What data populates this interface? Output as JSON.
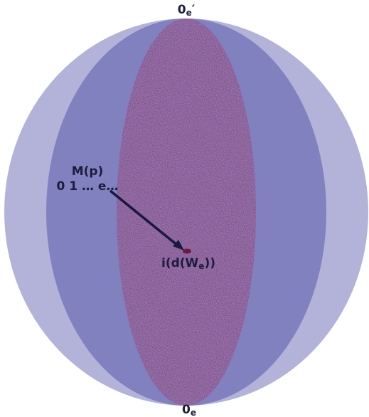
{
  "labels": {
    "top": {
      "main": "0",
      "sub": "e",
      "mark": "′"
    },
    "map": {
      "line1": "M(p)",
      "line2": "0 1 … e…"
    },
    "point": {
      "pre": "i(d(W",
      "sub": "e",
      "post": "))"
    },
    "bottom": {
      "main": "0",
      "sub": "e"
    }
  }
}
